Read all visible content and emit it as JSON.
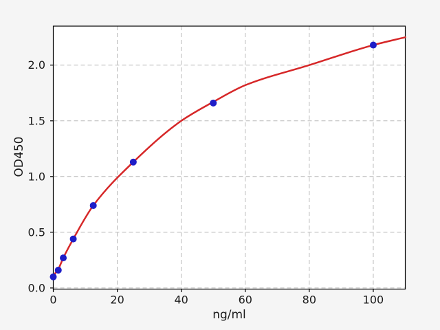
{
  "chart_data": {
    "type": "scatter",
    "title": "",
    "xlabel": "ng/ml",
    "ylabel": "OD450",
    "xlim": [
      0,
      110
    ],
    "ylim": [
      -0.01,
      2.35
    ],
    "xticks": [
      0,
      20,
      40,
      60,
      80,
      100
    ],
    "xtick_labels": [
      "0",
      "20",
      "40",
      "60",
      "80",
      "100"
    ],
    "yticks": [
      0.0,
      0.5,
      1.0,
      1.5,
      2.0
    ],
    "ytick_labels": [
      "0.0",
      "0.5",
      "1.0",
      "1.5",
      "2.0"
    ],
    "grid": {
      "visible": true,
      "linestyle": "dashed",
      "color": "#b9b9b9"
    },
    "colors": {
      "figure_bg": "#f5f5f5",
      "axes_bg": "#ffffff",
      "spine": "#000000",
      "scatter": "#1e1ec8",
      "fit_line": "#d62728"
    },
    "legend": {
      "visible": false
    },
    "series": [
      {
        "name": "standards",
        "type": "scatter",
        "x": [
          0,
          1.5625,
          3.125,
          6.25,
          12.5,
          25,
          50,
          100
        ],
        "y": [
          0.1,
          0.16,
          0.27,
          0.44,
          0.74,
          1.13,
          1.66,
          2.18
        ]
      },
      {
        "name": "fit-curve",
        "type": "line",
        "x": [
          0,
          1.5625,
          3.125,
          6.25,
          12.5,
          25,
          40,
          50,
          60,
          80,
          100,
          110
        ],
        "y": [
          0.11,
          0.17,
          0.27,
          0.44,
          0.74,
          1.13,
          1.5,
          1.67,
          1.82,
          2.0,
          2.18,
          2.25
        ]
      }
    ]
  }
}
